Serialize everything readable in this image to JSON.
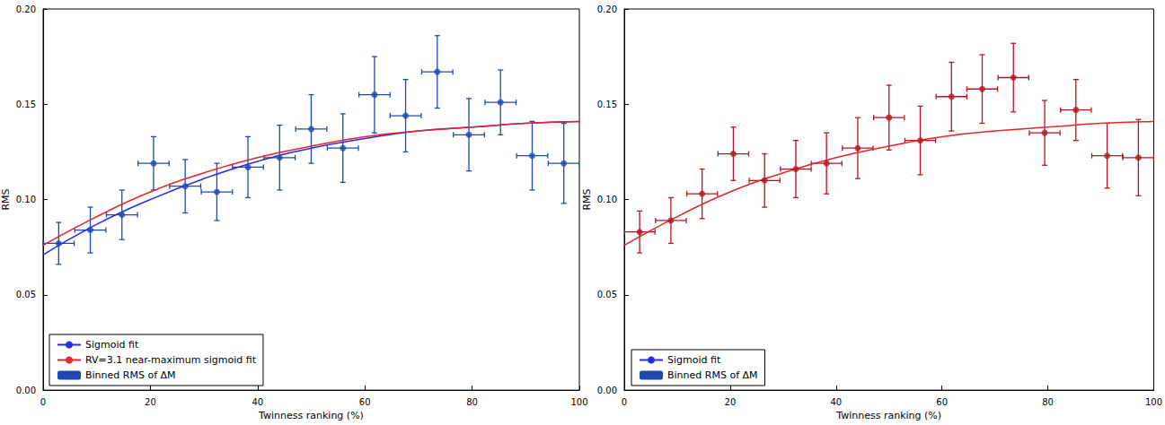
{
  "chart_data": [
    {
      "type": "scatter",
      "xlabel": "Twinness ranking (%)",
      "ylabel": "RMS",
      "xlim": [
        0,
        100
      ],
      "xticks": [
        0,
        20,
        40,
        60,
        80,
        100
      ],
      "ylim": [
        0,
        0.2
      ],
      "yticks": [
        {
          "value": 0,
          "label": "0.00"
        },
        {
          "value": 0.05,
          "label": "0.05"
        },
        {
          "value": 0.1,
          "label": "0.10"
        },
        {
          "value": 0.15,
          "label": "0.15"
        },
        {
          "value": 0.2,
          "label": "0.20"
        }
      ],
      "legend": "lower left",
      "series": [
        {
          "name": "Sigmoid fit",
          "type": "line",
          "color": "#2b2bf0",
          "x": [
            0,
            10,
            20,
            30,
            40,
            50,
            60,
            70,
            80,
            90,
            100
          ],
          "values": [
            0.071,
            0.087,
            0.1,
            0.111,
            0.12,
            0.127,
            0.132,
            0.136,
            0.138,
            0.14,
            0.141
          ]
        },
        {
          "name": "RV=3.1 near-maximum sigmoid fit",
          "type": "line",
          "color": "#e8262a",
          "x": [
            0,
            10,
            20,
            30,
            40,
            50,
            60,
            70,
            80,
            90,
            100
          ],
          "values": [
            0.076,
            0.091,
            0.104,
            0.114,
            0.122,
            0.128,
            0.133,
            0.136,
            0.138,
            0.14,
            0.141
          ]
        },
        {
          "name": "Binned RMS of ΔM",
          "type": "scatter",
          "color": "#1f48b0",
          "marker": "circle",
          "x": [
            2.9,
            8.8,
            14.7,
            20.6,
            26.5,
            32.4,
            38.2,
            44.1,
            50.0,
            55.9,
            61.8,
            67.6,
            73.5,
            79.4,
            85.3,
            91.2,
            97.1
          ],
          "values": [
            0.077,
            0.084,
            0.092,
            0.119,
            0.107,
            0.104,
            0.117,
            0.122,
            0.137,
            0.127,
            0.155,
            0.144,
            0.167,
            0.134,
            0.151,
            0.123,
            0.119
          ],
          "x_err": [
            2.9,
            2.9,
            2.9,
            2.9,
            2.9,
            2.9,
            2.9,
            2.9,
            2.9,
            2.9,
            2.9,
            2.9,
            2.9,
            2.9,
            2.9,
            2.9,
            2.9
          ],
          "y_err": [
            0.011,
            0.012,
            0.013,
            0.014,
            0.014,
            0.015,
            0.016,
            0.017,
            0.018,
            0.018,
            0.02,
            0.019,
            0.019,
            0.019,
            0.017,
            0.018,
            0.021
          ]
        }
      ]
    },
    {
      "type": "scatter",
      "xlabel": "Twinness ranking (%)",
      "ylabel": "RMS",
      "xlim": [
        0,
        100
      ],
      "xticks": [
        0,
        20,
        40,
        60,
        80,
        100
      ],
      "ylim": [
        0,
        0.2
      ],
      "yticks": [
        {
          "value": 0,
          "label": "0.00"
        },
        {
          "value": 0.05,
          "label": "0.05"
        },
        {
          "value": 0.1,
          "label": "0.10"
        },
        {
          "value": 0.15,
          "label": "0.15"
        },
        {
          "value": 0.2,
          "label": "0.20"
        }
      ],
      "legend": "lower left",
      "series": [
        {
          "name": "Sigmoid fit",
          "type": "line",
          "color": "#e8262a",
          "x": [
            0,
            10,
            20,
            30,
            40,
            50,
            60,
            70,
            80,
            90,
            100
          ],
          "values": [
            0.076,
            0.091,
            0.104,
            0.114,
            0.122,
            0.128,
            0.133,
            0.136,
            0.138,
            0.14,
            0.141
          ]
        },
        {
          "name": "Binned RMS of ΔM",
          "type": "scatter",
          "color": "#b3161f",
          "marker": "circle",
          "x": [
            2.9,
            8.8,
            14.7,
            20.6,
            26.5,
            32.4,
            38.2,
            44.1,
            50.0,
            55.9,
            61.8,
            67.6,
            73.5,
            79.4,
            85.3,
            91.2,
            97.1
          ],
          "values": [
            0.083,
            0.089,
            0.103,
            0.124,
            0.11,
            0.116,
            0.119,
            0.127,
            0.143,
            0.131,
            0.154,
            0.158,
            0.164,
            0.135,
            0.147,
            0.123,
            0.122
          ],
          "x_err": [
            2.9,
            2.9,
            2.9,
            2.9,
            2.9,
            2.9,
            2.9,
            2.9,
            2.9,
            2.9,
            2.9,
            2.9,
            2.9,
            2.9,
            2.9,
            2.9,
            2.9
          ],
          "y_err": [
            0.011,
            0.012,
            0.013,
            0.014,
            0.014,
            0.015,
            0.016,
            0.016,
            0.017,
            0.018,
            0.018,
            0.018,
            0.018,
            0.017,
            0.016,
            0.017,
            0.02
          ]
        }
      ]
    }
  ]
}
